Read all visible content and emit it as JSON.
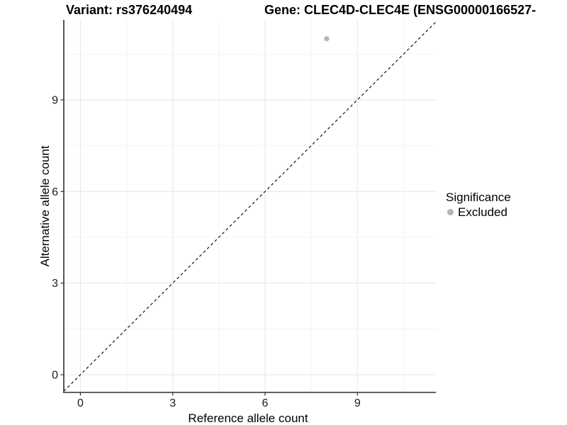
{
  "chart_data": {
    "type": "scatter",
    "title_left": "Variant: rs376240494",
    "title_right": "Gene: CLEC4D-CLEC4E (ENSG00000166527-",
    "xlabel": "Reference allele count",
    "ylabel": "Alternative allele count",
    "xlim": [
      -0.54,
      11.55
    ],
    "ylim": [
      -0.58,
      11.62
    ],
    "xticks": [
      0,
      3,
      6,
      9
    ],
    "yticks": [
      0,
      3,
      6,
      9
    ],
    "minor_xticks": [
      1.5,
      4.5,
      7.5,
      10.5
    ],
    "minor_yticks": [
      1.5,
      4.5,
      7.5,
      10.5
    ],
    "grid": true,
    "legend_position": "right",
    "legend": {
      "title": "Significance",
      "items": [
        {
          "label": "Excluded",
          "color": "#b4b4b4",
          "icon": "circle-point-icon"
        }
      ]
    },
    "identity_line": {
      "style": "dashed",
      "color": "#000000",
      "equation": "y = x"
    },
    "series": [
      {
        "name": "Excluded",
        "color": "#b4b4b4",
        "points": [
          {
            "x": 8,
            "y": 11
          }
        ]
      }
    ],
    "colors": {
      "background": "#ffffff",
      "grid_major": "#e7e7e7",
      "grid_minor": "#f3f3f3",
      "axis_line": "#2e2e2e",
      "tick_mark": "#333333",
      "tick_label": "#1a1a1a",
      "title_text": "#000000"
    }
  }
}
